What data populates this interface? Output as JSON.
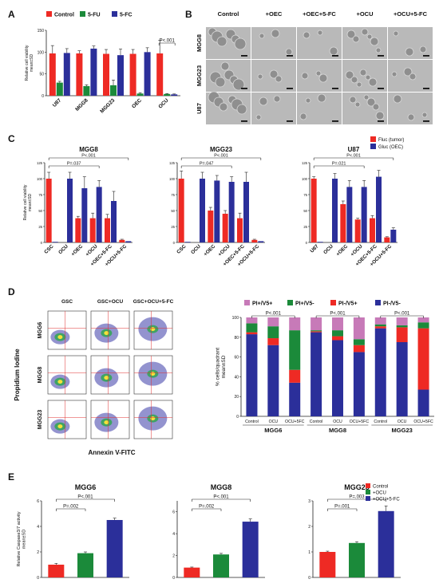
{
  "colors": {
    "red": "#ee2a24",
    "green": "#1b8a3a",
    "blue": "#2b2f9a",
    "pink": "#c77ab8",
    "text": "#111111",
    "axis": "#222222"
  },
  "panel_letters": {
    "A": "A",
    "B": "B",
    "C": "C",
    "D": "D",
    "E": "E"
  },
  "panel_B": {
    "columns": [
      "Control",
      "+OEC",
      "+OEC+5-FC",
      "+OCU",
      "+OCU+5-FC"
    ],
    "rows": [
      "MGG8",
      "MGG23",
      "U87"
    ]
  },
  "panel_D_flow": {
    "columns": [
      "GSC",
      "GSC+OCU",
      "GSC+OCU+5-FC"
    ],
    "rows": [
      "MGG6",
      "MGG8",
      "MGG23"
    ],
    "ylabel": "Propidium Iodine",
    "xlabel": "Annexin V-FITC"
  },
  "chart_data": [
    {
      "id": "A",
      "type": "bar",
      "categories": [
        "U87",
        "MGG8",
        "MGG23",
        "OEC",
        "OCU"
      ],
      "series": [
        {
          "name": "Control",
          "color": "#ee2a24",
          "values": [
            97,
            97,
            96,
            96,
            97
          ],
          "errors": [
            18,
            6,
            10,
            10,
            30
          ]
        },
        {
          "name": "5-FU",
          "color": "#1b8a3a",
          "values": [
            30,
            22,
            24,
            5,
            4
          ],
          "errors": [
            3,
            3,
            12,
            2,
            1
          ]
        },
        {
          "name": "5-FC",
          "color": "#2b2f9a",
          "values": [
            98,
            108,
            93,
            100,
            3
          ],
          "errors": [
            10,
            6,
            14,
            10,
            1
          ]
        }
      ],
      "ylabel": "Relative cell viability\nmean±SD",
      "ylim": [
        0,
        150
      ],
      "yticks": [
        0,
        50,
        100,
        150
      ],
      "annotations": [
        {
          "text": "P<.001",
          "from": 4,
          "to": 4
        }
      ]
    },
    {
      "id": "C1",
      "type": "bar",
      "title": "MGG8",
      "categories": [
        "CSC",
        "OCU",
        "+OEC",
        "+OCU",
        "+OEC+5-FC",
        "+OCU+5-FC"
      ],
      "series": [
        {
          "name": "Fluc (tumor)",
          "color": "#ee2a24",
          "values": [
            100,
            null,
            38,
            38,
            38,
            4
          ],
          "errors": [
            10,
            null,
            3,
            8,
            6,
            1
          ]
        },
        {
          "name": "Gluc (OEC)",
          "color": "#2b2f9a",
          "values": [
            1,
            100,
            85,
            87,
            65,
            2
          ],
          "errors": [
            0,
            10,
            18,
            10,
            15,
            0
          ]
        }
      ],
      "ylabel": "Relative cell viability\nmean±SD",
      "ylim": [
        0,
        125
      ],
      "yticks": [
        0,
        25,
        50,
        75,
        100,
        125
      ],
      "annotations": [
        {
          "text": "P<.001",
          "from": 0,
          "to": 5
        },
        {
          "text": "P=.037",
          "from": 0,
          "to": 3
        }
      ]
    },
    {
      "id": "C2",
      "type": "bar",
      "title": "MGG23",
      "categories": [
        "CSC",
        "OCU",
        "+OEC",
        "+OCU",
        "+OEC+5-FC",
        "+OCU+5-FC"
      ],
      "series": [
        {
          "name": "Fluc (tumor)",
          "color": "#ee2a24",
          "values": [
            100,
            null,
            50,
            45,
            38,
            4
          ],
          "errors": [
            12,
            null,
            5,
            5,
            8,
            1
          ]
        },
        {
          "name": "Gluc (OEC)",
          "color": "#2b2f9a",
          "values": [
            1,
            100,
            97,
            95,
            95,
            2
          ],
          "errors": [
            0,
            10,
            8,
            8,
            15,
            0
          ]
        }
      ],
      "ylim": [
        0,
        125
      ],
      "yticks": [
        0,
        25,
        50,
        75,
        100,
        125
      ],
      "annotations": [
        {
          "text": "P<.001",
          "from": 0,
          "to": 5
        },
        {
          "text": "P=.047",
          "from": 0,
          "to": 3
        }
      ]
    },
    {
      "id": "C3",
      "type": "bar",
      "title": "U87",
      "categories": [
        "U87",
        "OCU",
        "+OEC",
        "+OCU",
        "+OEC+5-FC",
        "+OCU+5-FC"
      ],
      "series": [
        {
          "name": "Fluc (tumor)",
          "color": "#ee2a24",
          "values": [
            100,
            null,
            60,
            36,
            38,
            8
          ],
          "errors": [
            3,
            null,
            5,
            2,
            4,
            1
          ]
        },
        {
          "name": "Gluc (OEC)",
          "color": "#2b2f9a",
          "values": [
            1,
            100,
            87,
            87,
            103,
            20
          ],
          "errors": [
            0,
            8,
            10,
            10,
            10,
            3
          ]
        }
      ],
      "legend": [
        "Fluc (tumor)",
        "Gluc (OEC)"
      ],
      "ylim": [
        0,
        125
      ],
      "yticks": [
        0,
        25,
        50,
        75,
        100,
        125
      ],
      "annotations": [
        {
          "text": "P<.001",
          "from": 0,
          "to": 5
        },
        {
          "text": "P=.021",
          "from": 0,
          "to": 3
        }
      ]
    },
    {
      "id": "D",
      "type": "bar",
      "stacked": true,
      "groups": [
        "MGG6",
        "MGG8",
        "MGG23"
      ],
      "categories": [
        "Control",
        "OCU",
        "OCU+5FC",
        "Control",
        "OCU",
        "OCU+5FC",
        "Control",
        "OCU",
        "OCU+5FC"
      ],
      "series": [
        {
          "name": "PI-/V5-",
          "color": "#2b2f9a",
          "values": [
            83,
            72,
            34,
            85,
            77,
            65,
            89,
            75,
            27
          ]
        },
        {
          "name": "PI-/V5+",
          "color": "#ee2a24",
          "values": [
            2,
            7,
            13,
            1,
            4,
            7,
            2,
            15,
            62
          ]
        },
        {
          "name": "PI+/V5-",
          "color": "#1b8a3a",
          "values": [
            9,
            12,
            40,
            1,
            6,
            6,
            2,
            2,
            6
          ]
        },
        {
          "name": "PI+/V5+",
          "color": "#c77ab8",
          "values": [
            6,
            9,
            13,
            13,
            13,
            22,
            7,
            8,
            5
          ]
        }
      ],
      "legend": [
        "PI+/V5+",
        "PI+/V5-",
        "PI-/V5+",
        "PI-/V5-"
      ],
      "ylabel": "% cells/quadrant\nmean±SD",
      "ylim": [
        0,
        100
      ],
      "yticks": [
        0,
        20,
        40,
        60,
        80,
        100
      ],
      "annotations": [
        {
          "text": "P<.001",
          "from": 0,
          "to": 2
        },
        {
          "text": "P<.001",
          "from": 3,
          "to": 5
        },
        {
          "text": "P<.001",
          "from": 6,
          "to": 8
        }
      ]
    },
    {
      "id": "E1",
      "type": "bar",
      "title": "MGG6",
      "categories": [
        "Control",
        "+OCU",
        "+OCU+5-FC"
      ],
      "values": [
        1.0,
        1.9,
        4.5
      ],
      "errors": [
        0.1,
        0.1,
        0.15
      ],
      "colors": [
        "#ee2a24",
        "#1b8a3a",
        "#2b2f9a"
      ],
      "ylabel": "Relative Caspase3/7 activity\nmean±SD",
      "ylim": [
        0,
        6
      ],
      "yticks": [
        0,
        2,
        4,
        6
      ],
      "annotations": [
        {
          "text": "P=.002",
          "from": 0,
          "to": 1
        },
        {
          "text": "P<.001",
          "from": 0,
          "to": 2
        }
      ]
    },
    {
      "id": "E2",
      "type": "bar",
      "title": "MGG8",
      "categories": [
        "Control",
        "+OCU",
        "+OCU+5-FC"
      ],
      "values": [
        0.9,
        2.1,
        5.1
      ],
      "errors": [
        0.05,
        0.1,
        0.25
      ],
      "colors": [
        "#ee2a24",
        "#1b8a3a",
        "#2b2f9a"
      ],
      "ylim": [
        0,
        7
      ],
      "yticks": [
        0,
        2,
        4,
        6
      ],
      "annotations": [
        {
          "text": "P=.002",
          "from": 0,
          "to": 1
        },
        {
          "text": "P<.001",
          "from": 0,
          "to": 2
        }
      ]
    },
    {
      "id": "E3",
      "type": "bar",
      "title": "MGG23",
      "categories": [
        "Control",
        "+OCU",
        "+OCU+5-FC"
      ],
      "values": [
        1.0,
        1.35,
        2.6
      ],
      "errors": [
        0.03,
        0.05,
        0.2
      ],
      "colors": [
        "#ee2a24",
        "#1b8a3a",
        "#2b2f9a"
      ],
      "legend": [
        "Control",
        "+OCU",
        "+OCU+5-FC"
      ],
      "ylim": [
        0,
        3
      ],
      "yticks": [
        0,
        1,
        2,
        3
      ],
      "annotations": [
        {
          "text": "P=.001",
          "from": 0,
          "to": 1
        },
        {
          "text": "P=.003",
          "from": 0,
          "to": 2
        }
      ]
    }
  ]
}
